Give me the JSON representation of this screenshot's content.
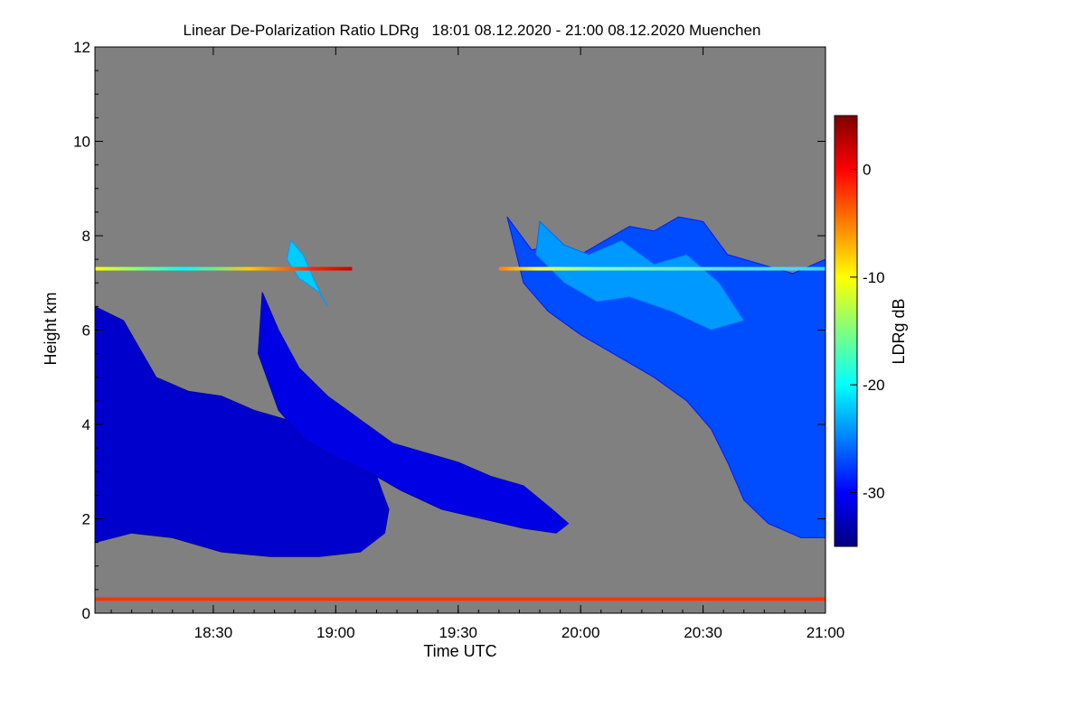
{
  "chart_data": {
    "type": "heatmap",
    "title": "Linear De-Polarization Ratio LDRg   18:01 08.12.2020 - 21:00 08.12.2020 Muenchen",
    "xlabel": "Time UTC",
    "ylabel": "Height km",
    "xlim_minutes_utc": [
      1081,
      1260
    ],
    "ylim_km": [
      0,
      12
    ],
    "x_ticks": [
      {
        "minute": 1110,
        "label": "18:30"
      },
      {
        "minute": 1140,
        "label": "19:00"
      },
      {
        "minute": 1170,
        "label": "19:30"
      },
      {
        "minute": 1200,
        "label": "20:00"
      },
      {
        "minute": 1230,
        "label": "20:30"
      },
      {
        "minute": 1260,
        "label": "21:00"
      }
    ],
    "y_ticks": [
      0,
      2,
      4,
      6,
      8,
      10,
      12
    ],
    "background_color": "#808080",
    "colorbar": {
      "label": "LDRg dB",
      "range_db": [
        -35,
        5
      ],
      "ticks": [
        {
          "value": 0,
          "label": "0"
        },
        {
          "value": -10,
          "label": "-10"
        },
        {
          "value": -20,
          "label": "-20"
        },
        {
          "value": -30,
          "label": "-30"
        }
      ],
      "colormap_stops": [
        "#00007f",
        "#0000ff",
        "#007fff",
        "#00ffff",
        "#7fff7f",
        "#ffff00",
        "#ff7f00",
        "#ff0000",
        "#7f0000"
      ]
    },
    "regions": [
      {
        "name": "low-cloud-deck-left",
        "ldr_db": -32,
        "polygon_min_km": [
          [
            1081,
            6.5
          ],
          [
            1088,
            6.2
          ],
          [
            1096,
            5.0
          ],
          [
            1104,
            4.7
          ],
          [
            1112,
            4.6
          ],
          [
            1120,
            4.3
          ],
          [
            1128,
            4.1
          ],
          [
            1136,
            3.9
          ],
          [
            1144,
            3.5
          ],
          [
            1150,
            2.9
          ],
          [
            1153,
            2.2
          ],
          [
            1152,
            1.7
          ],
          [
            1146,
            1.3
          ],
          [
            1136,
            1.2
          ],
          [
            1124,
            1.2
          ],
          [
            1112,
            1.3
          ],
          [
            1100,
            1.6
          ],
          [
            1090,
            1.7
          ],
          [
            1081,
            1.5
          ]
        ]
      },
      {
        "name": "fall-streak-middle",
        "ldr_db": -31,
        "polygon_min_km": [
          [
            1122,
            6.8
          ],
          [
            1126,
            6.0
          ],
          [
            1131,
            5.2
          ],
          [
            1138,
            4.6
          ],
          [
            1146,
            4.1
          ],
          [
            1154,
            3.6
          ],
          [
            1162,
            3.4
          ],
          [
            1170,
            3.2
          ],
          [
            1178,
            2.9
          ],
          [
            1186,
            2.7
          ],
          [
            1193,
            2.2
          ],
          [
            1197,
            1.9
          ],
          [
            1194,
            1.7
          ],
          [
            1186,
            1.8
          ],
          [
            1176,
            2.0
          ],
          [
            1166,
            2.2
          ],
          [
            1156,
            2.6
          ],
          [
            1148,
            3.0
          ],
          [
            1140,
            3.3
          ],
          [
            1132,
            3.7
          ],
          [
            1126,
            4.3
          ],
          [
            1121,
            5.5
          ]
        ]
      },
      {
        "name": "upper-cloud-right",
        "ldr_db": -27,
        "polygon_min_km": [
          [
            1182,
            8.4
          ],
          [
            1188,
            7.7
          ],
          [
            1194,
            7.8
          ],
          [
            1200,
            7.6
          ],
          [
            1206,
            7.9
          ],
          [
            1212,
            8.2
          ],
          [
            1218,
            8.1
          ],
          [
            1224,
            8.4
          ],
          [
            1230,
            8.3
          ],
          [
            1236,
            7.6
          ],
          [
            1244,
            7.4
          ],
          [
            1252,
            7.2
          ],
          [
            1260,
            7.5
          ],
          [
            1260,
            1.6
          ],
          [
            1254,
            1.6
          ],
          [
            1246,
            1.9
          ],
          [
            1240,
            2.4
          ],
          [
            1236,
            3.2
          ],
          [
            1232,
            3.9
          ],
          [
            1226,
            4.5
          ],
          [
            1218,
            5.0
          ],
          [
            1210,
            5.4
          ],
          [
            1200,
            5.9
          ],
          [
            1192,
            6.4
          ],
          [
            1186,
            7.0
          ]
        ]
      },
      {
        "name": "ice-cloud-patch",
        "ldr_db": -22,
        "polygon_min_km": [
          [
            1129,
            7.9
          ],
          [
            1132,
            7.6
          ],
          [
            1135,
            7.0
          ],
          [
            1138,
            6.5
          ],
          [
            1136,
            6.8
          ],
          [
            1131,
            7.1
          ],
          [
            1128,
            7.5
          ]
        ]
      },
      {
        "name": "upper-right-streaks",
        "ldr_db": -24,
        "polygon_min_km": [
          [
            1190,
            8.3
          ],
          [
            1196,
            7.8
          ],
          [
            1202,
            7.6
          ],
          [
            1210,
            7.9
          ],
          [
            1218,
            7.4
          ],
          [
            1226,
            7.6
          ],
          [
            1234,
            7.0
          ],
          [
            1240,
            6.2
          ],
          [
            1232,
            6.0
          ],
          [
            1222,
            6.4
          ],
          [
            1212,
            6.7
          ],
          [
            1204,
            6.6
          ],
          [
            1196,
            7.0
          ],
          [
            1189,
            7.6
          ]
        ]
      }
    ],
    "layers": [
      {
        "name": "surface-layer",
        "height_km": 0.3,
        "from_min": 1081,
        "to_min": 1260,
        "ldr_db": -2
      },
      {
        "name": "upper-layer-left",
        "height_km": 7.3,
        "from_min": 1081,
        "to_min": 1144,
        "ldr_db": -14
      },
      {
        "name": "upper-layer-right",
        "height_km": 7.3,
        "from_min": 1180,
        "to_min": 1260,
        "ldr_db": -20
      }
    ]
  }
}
